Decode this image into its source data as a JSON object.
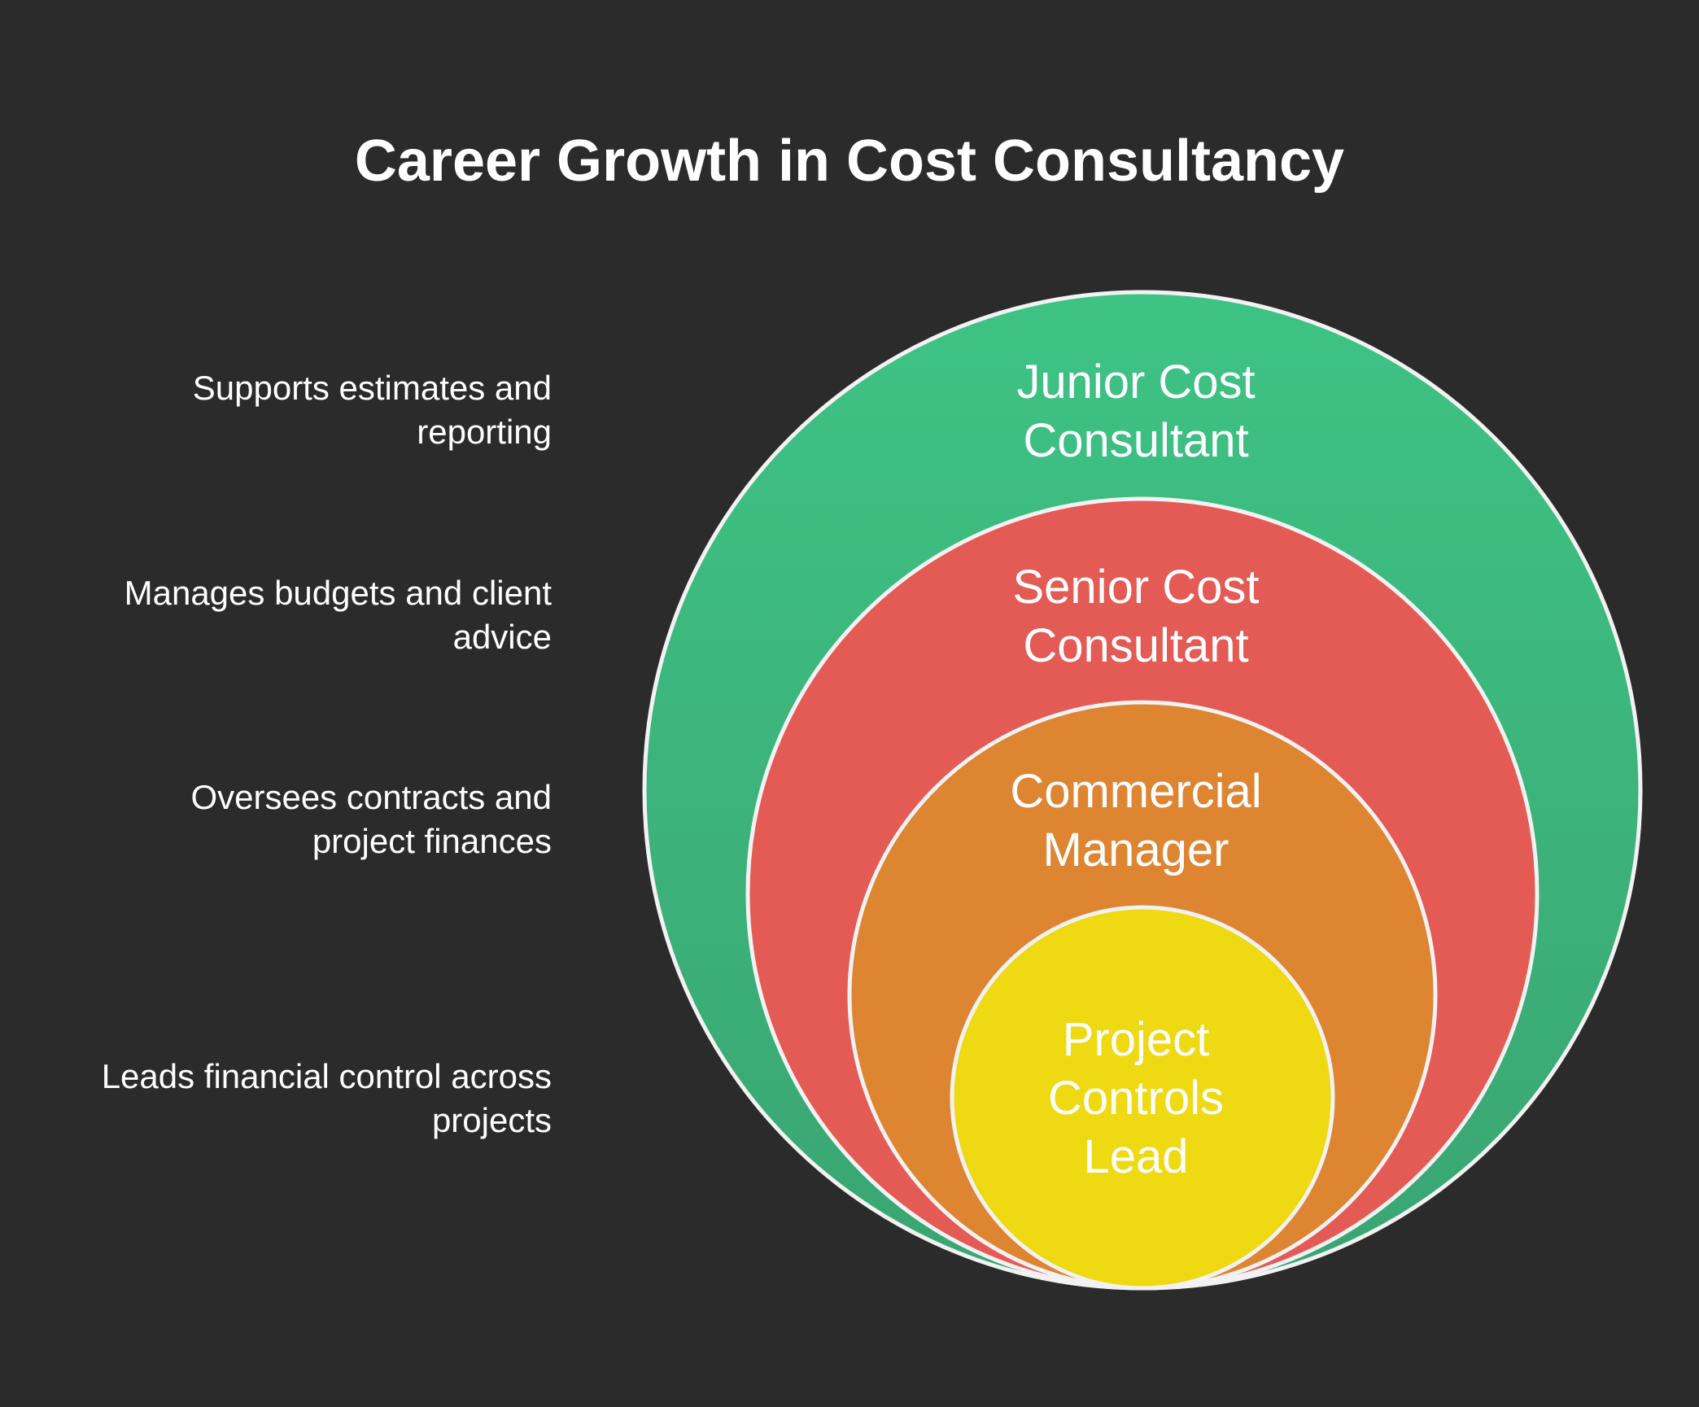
{
  "title": "Career Growth in Cost Consultancy",
  "levels": [
    {
      "label": "Junior Cost\nConsultant",
      "description": "Supports estimates and\nreporting",
      "color": "#3ec385"
    },
    {
      "label": "Senior Cost\nConsultant",
      "description": "Manages budgets and client\nadvice",
      "color": "#e45a55"
    },
    {
      "label": "Commercial\nManager",
      "description": "Oversees contracts and\nproject finances",
      "color": "#de8532"
    },
    {
      "label": "Project\nControls\nLead",
      "description": "Leads financial control across\nprojects",
      "color": "#eed912"
    }
  ],
  "colors": {
    "background": "#2b2b2b",
    "stroke": "#f2f2f2",
    "text": "#ffffff"
  }
}
